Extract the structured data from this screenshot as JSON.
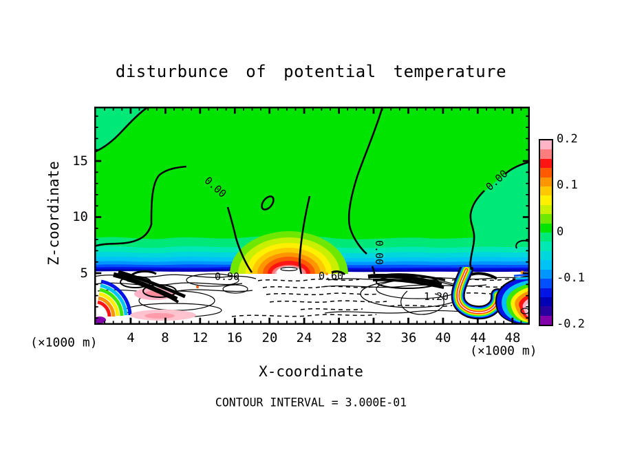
{
  "title": "disturbunce of potential temperature",
  "axes": {
    "x": {
      "label": "X-coordinate",
      "units": "(×1000 m)",
      "tick_labels": [
        "4",
        "8",
        "12",
        "16",
        "20",
        "24",
        "28",
        "32",
        "36",
        "40",
        "44",
        "48"
      ]
    },
    "y": {
      "label": "Z-coordinate",
      "units": "(×1000 m)",
      "tick_labels": [
        "15",
        "10",
        "5"
      ]
    }
  },
  "colorbar": {
    "tick_labels": [
      "0.2",
      "0.1",
      "0",
      "-0.1",
      "-0.2"
    ],
    "colors": [
      "#FFB4C8",
      "#FF7D7D",
      "#FF1414",
      "#FF5A00",
      "#FF9600",
      "#FFC800",
      "#FFF000",
      "#C8F000",
      "#6EE800",
      "#00E400",
      "#00E878",
      "#00E8B4",
      "#00D7DC",
      "#00C3F5",
      "#0096FF",
      "#0050FF",
      "#0014E6",
      "#0000B4",
      "#2800A0",
      "#8200AA"
    ]
  },
  "footer": {
    "contour_interval": "CONTOUR INTERVAL = 3.000E-01"
  },
  "plot": {
    "contour_labels": [
      {
        "text": "0.00"
      },
      {
        "text": "0.00"
      },
      {
        "text": "0.00"
      },
      {
        "text": "0.60"
      },
      {
        "text": "0.90"
      },
      {
        "text": "1.20"
      }
    ]
  },
  "chart_data": {
    "type": "heatmap",
    "title": "disturbunce of potential temperature",
    "xlabel": "X-coordinate",
    "ylabel": "Z-coordinate",
    "x_units": "×1000 m",
    "y_units": "×1000 m",
    "xlim": [
      0,
      50
    ],
    "ylim": [
      0,
      20
    ],
    "x_ticks": [
      4,
      8,
      12,
      16,
      20,
      24,
      28,
      32,
      36,
      40,
      44,
      48
    ],
    "y_ticks": [
      5,
      10,
      15
    ],
    "colorbar_range": [
      -0.2,
      0.2
    ],
    "colorbar_ticks": [
      0.2,
      0.1,
      0,
      -0.1,
      -0.2
    ],
    "contour_interval": 0.3,
    "labeled_contour_values": [
      0.0,
      0.6,
      0.9,
      1.2
    ],
    "features": [
      "Upper region (z ≈ 5–20 km) nearly uniform, slightly positive (green, 0 to +0.05)",
      "Zero contour encloses slightly negative patches in upper-left corner and right side (spring-green)",
      "Closed zero-contour island near x ≈ 20, z ≈ 11",
      "Warm plume centered near x ≈ 22, z ≈ 5.5 with maximum exceeding +0.2 (white core, labeled 0.60)",
      "Thin negative layer (cyan to dark blue, -0.02 to -0.2) along z ≈ 5 across full domain",
      "Turbulent boundary layer below z ≈ 5 with large ± fluctuations, contours labeled 0.90 and 1.20, dashed negative contours, saturated rainbow filaments"
    ]
  }
}
